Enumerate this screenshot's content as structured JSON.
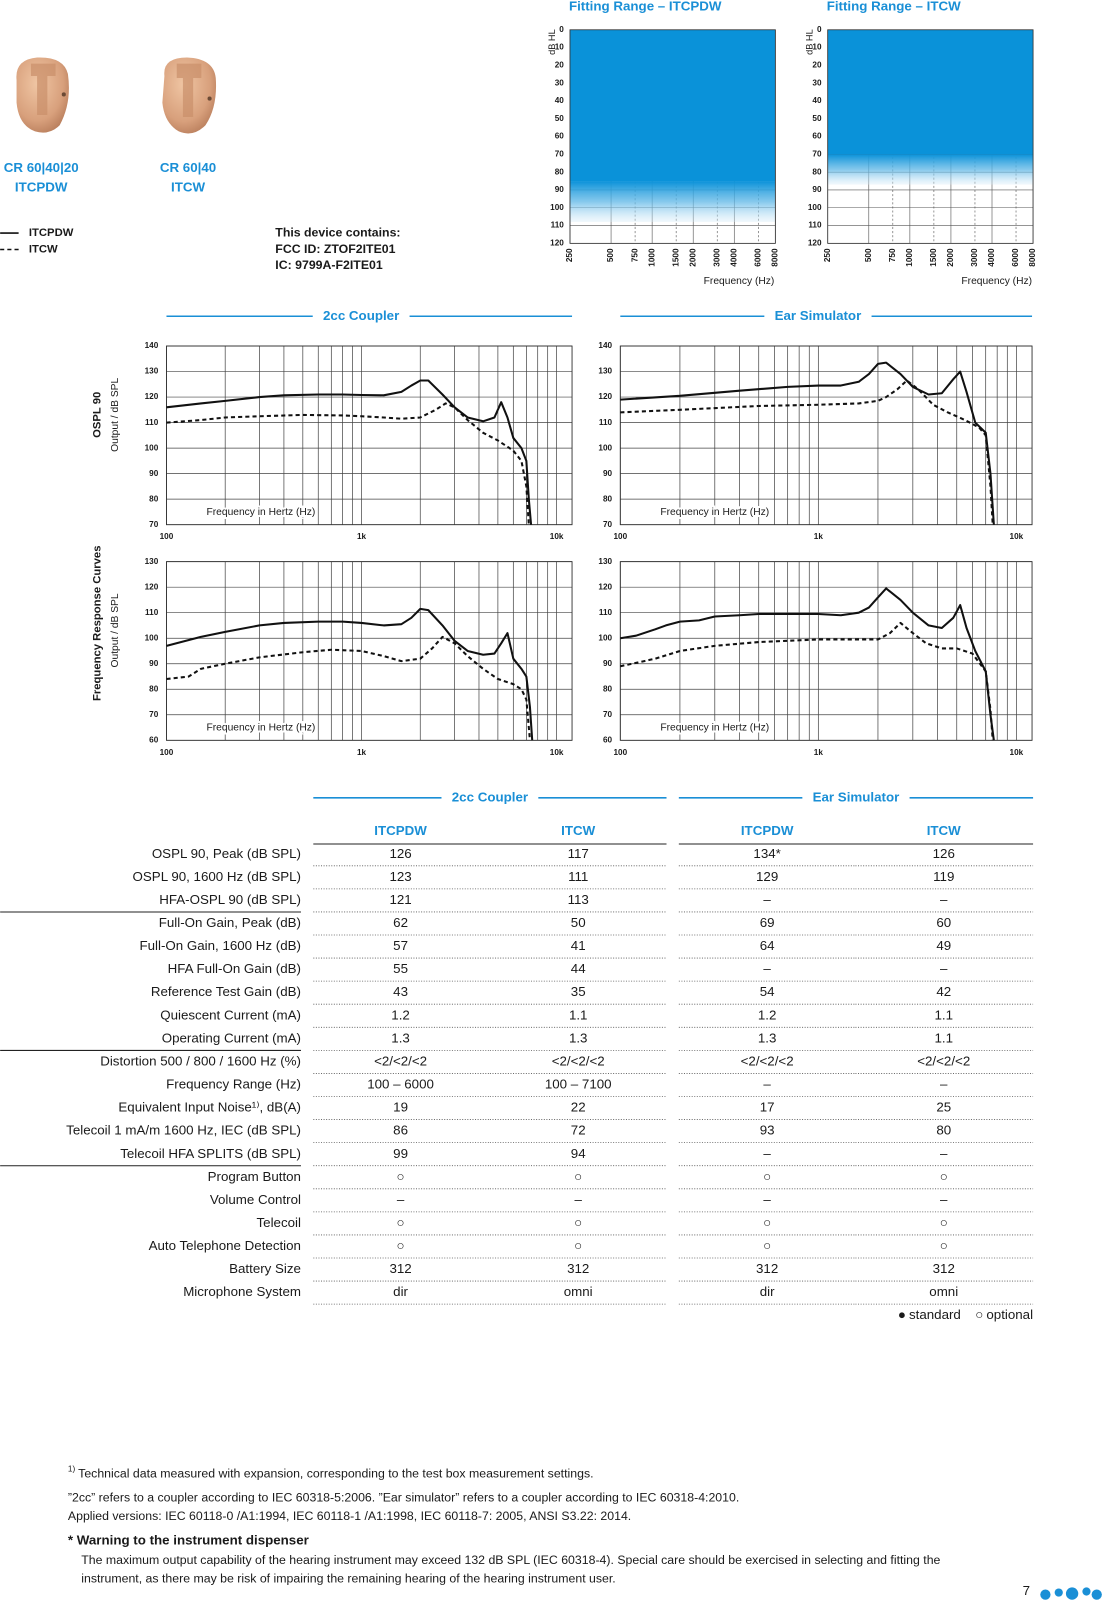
{
  "products": [
    {
      "model": "CR 60|40|20",
      "style": "ITCPDW"
    },
    {
      "model": "CR 60|40",
      "style": "ITCW"
    }
  ],
  "line_legend": [
    {
      "label": "ITCPDW",
      "dash": false
    },
    {
      "label": "ITCW",
      "dash": true
    }
  ],
  "device_info": [
    "This device contains:",
    "FCC ID: ZTOF2ITE01",
    "IC: 9799A-F2ITE01"
  ],
  "fitting_axes": {
    "y_label": "dB HL",
    "x_label": "Frequency (Hz)",
    "ylim": [
      0,
      120
    ],
    "yticks": [
      0,
      10,
      20,
      30,
      40,
      50,
      60,
      70,
      80,
      90,
      100,
      110,
      120
    ],
    "xlim": [
      250,
      8000
    ],
    "xticks": [
      250,
      500,
      750,
      1000,
      1500,
      2000,
      3000,
      4000,
      6000,
      8000
    ]
  },
  "fitting_charts": [
    {
      "title": "Fitting Range – ITCPDW",
      "full_to": 85,
      "fade_to": 108
    },
    {
      "title": "Fitting Range – ITCW",
      "full_to": 70,
      "fade_to": 87
    }
  ],
  "response": {
    "sections": [
      "2cc Coupler",
      "Ear Simulator"
    ],
    "x_label": "Frequency in Hertz (Hz)",
    "xlim": [
      100,
      12000
    ],
    "xticks": [
      100,
      {
        "value": 1000,
        "label": "1k"
      },
      {
        "value": 10000,
        "label": "10k"
      }
    ],
    "minor_xticks": [
      200,
      300,
      400,
      500,
      600,
      700,
      800,
      900,
      2000,
      3000,
      4000,
      5000,
      6000,
      7000,
      8000,
      9000
    ],
    "rows": [
      {
        "title": "OSPL 90",
        "unit": "Output / dB SPL",
        "ylim": [
          70,
          140
        ],
        "yticks": [
          70,
          80,
          90,
          100,
          110,
          120,
          130,
          140
        ]
      },
      {
        "title": "Frequency Response Curves",
        "unit": "Output / dB SPL",
        "ylim": [
          60,
          130
        ],
        "yticks": [
          60,
          70,
          80,
          90,
          100,
          110,
          120,
          130
        ]
      }
    ],
    "charts": [
      {
        "series": [
          {
            "dash": false,
            "x": [
              100,
              150,
              200,
              300,
              400,
              600,
              800,
              1000,
              1300,
              1600,
              1800,
              2000,
              2200,
              2600,
              3000,
              3500,
              4200,
              4800,
              5200,
              5600,
              6000,
              6600,
              7000,
              7200,
              7400
            ],
            "values": [
              116,
              117.5,
              118.5,
              120,
              120.7,
              121,
              121,
              120.8,
              120.7,
              122,
              124.5,
              126.5,
              126.5,
              121,
              116,
              112,
              110.5,
              112,
              118,
              112,
              104,
              100,
              95,
              80,
              70
            ]
          },
          {
            "dash": true,
            "x": [
              100,
              150,
              200,
              300,
              500,
              800,
              1000,
              1300,
              1600,
              2000,
              2400,
              2700,
              3000,
              3500,
              4200,
              5000,
              6000,
              6600,
              7000,
              7200
            ],
            "values": [
              110,
              111,
              112,
              112.5,
              113,
              112.8,
              112.5,
              112,
              111.5,
              112,
              115,
              117.5,
              116,
              111,
              106,
              103,
              99,
              95,
              85,
              70
            ]
          }
        ]
      },
      {
        "series": [
          {
            "dash": false,
            "x": [
              100,
              200,
              400,
              700,
              1000,
              1300,
              1600,
              1800,
              2000,
              2200,
              2600,
              3000,
              3600,
              4200,
              4800,
              5200,
              5600,
              6200,
              7000,
              7400,
              7700
            ],
            "values": [
              119,
              120.5,
              122.5,
              124,
              124.5,
              124.5,
              126,
              129,
              133,
              133.5,
              129,
              124,
              121,
              121.5,
              127,
              130,
              122,
              110,
              106,
              90,
              70
            ]
          },
          {
            "dash": true,
            "x": [
              100,
              200,
              500,
              1000,
              1600,
              2000,
              2200,
              2500,
              2800,
              3200,
              3800,
              4500,
              5500,
              6500,
              7000,
              7400,
              7600
            ],
            "values": [
              114,
              115,
              116.5,
              117,
              117.5,
              118.5,
              120,
              123,
              126.5,
              123,
              117,
              114,
              111,
              108,
              105,
              85,
              70
            ]
          }
        ]
      },
      {
        "series": [
          {
            "dash": false,
            "x": [
              100,
              150,
              200,
              300,
              400,
              600,
              800,
              1000,
              1300,
              1600,
              1800,
              2000,
              2200,
              2600,
              3000,
              3500,
              4200,
              4800,
              5200,
              5600,
              6000,
              6600,
              7000,
              7300,
              7500
            ],
            "values": [
              97,
              100.5,
              102.5,
              105,
              106,
              106.5,
              106.5,
              106,
              105,
              105.5,
              108,
              111.5,
              111,
              105,
              99,
              95,
              93.5,
              94,
              98,
              102,
              92,
              88,
              85,
              73,
              60
            ]
          },
          {
            "dash": true,
            "x": [
              100,
              130,
              150,
              200,
              300,
              500,
              700,
              1000,
              1300,
              1600,
              2000,
              2300,
              2600,
              3000,
              3500,
              4200,
              5000,
              6000,
              6600,
              7000,
              7300
            ],
            "values": [
              84,
              85,
              88,
              90,
              92.5,
              94.5,
              95.5,
              95,
              93,
              91,
              92,
              96,
              100.5,
              98,
              93,
              88,
              84,
              82,
              80,
              76,
              60
            ]
          }
        ]
      },
      {
        "series": [
          {
            "dash": false,
            "x": [
              100,
              120,
              150,
              170,
              200,
              250,
              300,
              400,
              500,
              700,
              1000,
              1300,
              1600,
              1800,
              2000,
              2200,
              2600,
              3000,
              3600,
              4200,
              4800,
              5200,
              5600,
              6200,
              7000,
              7400,
              7700
            ],
            "values": [
              100,
              101,
              103.5,
              105,
              106.5,
              107,
              108.5,
              109,
              109.5,
              109.5,
              109.5,
              109,
              110,
              112,
              116,
              119.5,
              115,
              110,
              105,
              104,
              108,
              113,
              104,
              95,
              87,
              70,
              60
            ]
          },
          {
            "dash": true,
            "x": [
              100,
              150,
              200,
              300,
              500,
              1000,
              1500,
              2000,
              2300,
              2600,
              3000,
              3500,
              4200,
              5000,
              6000,
              7000,
              7400,
              7600
            ],
            "values": [
              89,
              92,
              95,
              97,
              98.5,
              99.5,
              99.5,
              99.5,
              102,
              106,
              102,
              98,
              96,
              96,
              94,
              87,
              72,
              60
            ]
          }
        ]
      }
    ]
  },
  "table": {
    "sections": [
      "2cc Coupler",
      "Ear Simulator"
    ],
    "columns": [
      "ITCPDW",
      "ITCW",
      "ITCPDW",
      "ITCW"
    ],
    "groups": [
      [
        [
          "OSPL 90, Peak (dB SPL)",
          "126",
          "117",
          "134*",
          "126"
        ],
        [
          "OSPL 90, 1600 Hz (dB SPL)",
          "123",
          "111",
          "129",
          "119"
        ],
        [
          "HFA-OSPL 90 (dB SPL)",
          "121",
          "113",
          "–",
          "–"
        ]
      ],
      [
        [
          "Full-On Gain, Peak (dB)",
          "62",
          "50",
          "69",
          "60"
        ],
        [
          "Full-On Gain, 1600 Hz (dB)",
          "57",
          "41",
          "64",
          "49"
        ],
        [
          "HFA Full-On Gain (dB)",
          "55",
          "44",
          "–",
          "–"
        ],
        [
          "Reference Test Gain (dB)",
          "43",
          "35",
          "54",
          "42"
        ],
        [
          "Quiescent Current (mA)",
          "1.2",
          "1.1",
          "1.2",
          "1.1"
        ],
        [
          "Operating Current (mA)",
          "1.3",
          "1.3",
          "1.3",
          "1.1"
        ]
      ],
      [
        [
          "Distortion 500 / 800 / 1600 Hz (%)",
          "<2/<2/<2",
          "<2/<2/<2",
          "<2/<2/<2",
          "<2/<2/<2"
        ],
        [
          "Frequency Range (Hz)",
          "100 – 6000",
          "100 – 7100",
          "–",
          "–"
        ],
        [
          "Equivalent Input Noise¹⁾, dB(A)",
          "19",
          "22",
          "17",
          "25"
        ],
        [
          "Telecoil 1 mA/m 1600 Hz, IEC (dB SPL)",
          "86",
          "72",
          "93",
          "80"
        ],
        [
          "Telecoil HFA SPLITS (dB SPL)",
          "99",
          "94",
          "–",
          "–"
        ]
      ],
      [
        [
          "Program Button",
          "○",
          "○",
          "○",
          "○"
        ],
        [
          "Volume Control",
          "–",
          "–",
          "–",
          "–"
        ],
        [
          "Telecoil",
          "○",
          "○",
          "○",
          "○"
        ],
        [
          "Auto Telephone Detection",
          "○",
          "○",
          "○",
          "○"
        ],
        [
          "Battery Size",
          "312",
          "312",
          "312",
          "312"
        ],
        [
          "Microphone System",
          "dir",
          "omni",
          "dir",
          "omni"
        ]
      ]
    ],
    "legend": [
      {
        "symbol": "●",
        "label": "standard"
      },
      {
        "symbol": "○",
        "label": "optional"
      }
    ]
  },
  "footnotes": {
    "note": {
      "mark": "1)",
      "text": "Technical data measured with expansion, corresponding to the test box measurement settings."
    },
    "lines": [
      "”2cc” refers to a coupler according to IEC 60318-5:2006. ”Ear simulator” refers to a coupler according to IEC 60318-4:2010.",
      "Applied versions: IEC 60118-0 /A1:1994, IEC 60118-1 /A1:1998, IEC 60118-7: 2005, ANSI S3.22: 2014."
    ],
    "warning": {
      "title": "* Warning to the instrument dispenser",
      "lines": [
        "The maximum output capability of the hearing instrument may exceed 132 dB SPL (IEC 60318-4). Special care should be exercised in selecting and fitting the",
        "instrument, as there may be risk of impairing the remaining hearing of the hearing instrument user."
      ]
    }
  },
  "page_number": "7"
}
